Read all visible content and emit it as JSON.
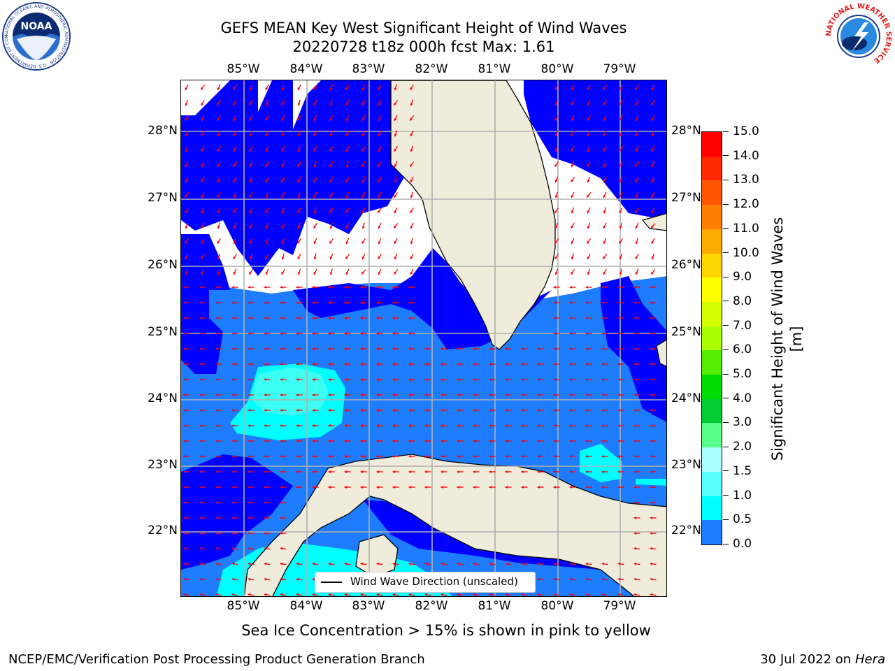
{
  "header": {
    "title_line1": "GEFS MEAN Key West Significant Height of Wind Waves",
    "title_line2": "20220728 t18z 000h fcst   Max: 1.61"
  },
  "map": {
    "lon_labels": [
      "85°W",
      "84°W",
      "83°W",
      "82°W",
      "81°W",
      "80°W",
      "79°W"
    ],
    "lat_labels": [
      "28°N",
      "27°N",
      "26°N",
      "25°N",
      "24°N",
      "23°N",
      "22°N"
    ],
    "legend_label": "Wind Wave Direction (unscaled)",
    "colors": {
      "land": "#efecdc",
      "level_0_0p5": "#0000ff",
      "level_0p5_1": "#1e7cff",
      "level_1_1p5": "#00ffff",
      "level_1p5_2": "#55ffee",
      "arrow": "#ff0000",
      "grid": "#b0b0b0"
    }
  },
  "colorbar": {
    "label": "Significant Height of Wind Waves [m]",
    "ticks": [
      "15.0",
      "14.0",
      "13.0",
      "12.0",
      "11.0",
      "10.0",
      "9.0",
      "8.0",
      "7.0",
      "6.0",
      "5.0",
      "4.0",
      "3.0",
      "2.0",
      "1.5",
      "1.0",
      "0.5",
      "0.0"
    ],
    "colors_top_to_bottom": [
      "#ff0000",
      "#ff2a00",
      "#ff5500",
      "#ff8000",
      "#ffaa00",
      "#ffd500",
      "#ffff00",
      "#d5ff00",
      "#aaff00",
      "#55ee00",
      "#00dd00",
      "#00cc33",
      "#55ff88",
      "#aaffff",
      "#55ffff",
      "#00ffff",
      "#1e7cff",
      "#0000ff"
    ]
  },
  "footer": {
    "sea_ice_note": "Sea Ice Concentration > 15% is shown in pink to yellow",
    "left": "NCEP/EMC/Verification Post Processing Product Generation Branch",
    "right_prefix": "30 Jul 2022 on ",
    "right_host": "Hera"
  },
  "logos": {
    "noaa_text": "NOAA",
    "noaa_ring": "NATIONAL OCEANIC AND ATMOSPHERIC ADMINISTRATION · U.S. DEPARTMENT OF COMMERCE",
    "nws_ring": "NATIONAL WEATHER SERVICE"
  }
}
